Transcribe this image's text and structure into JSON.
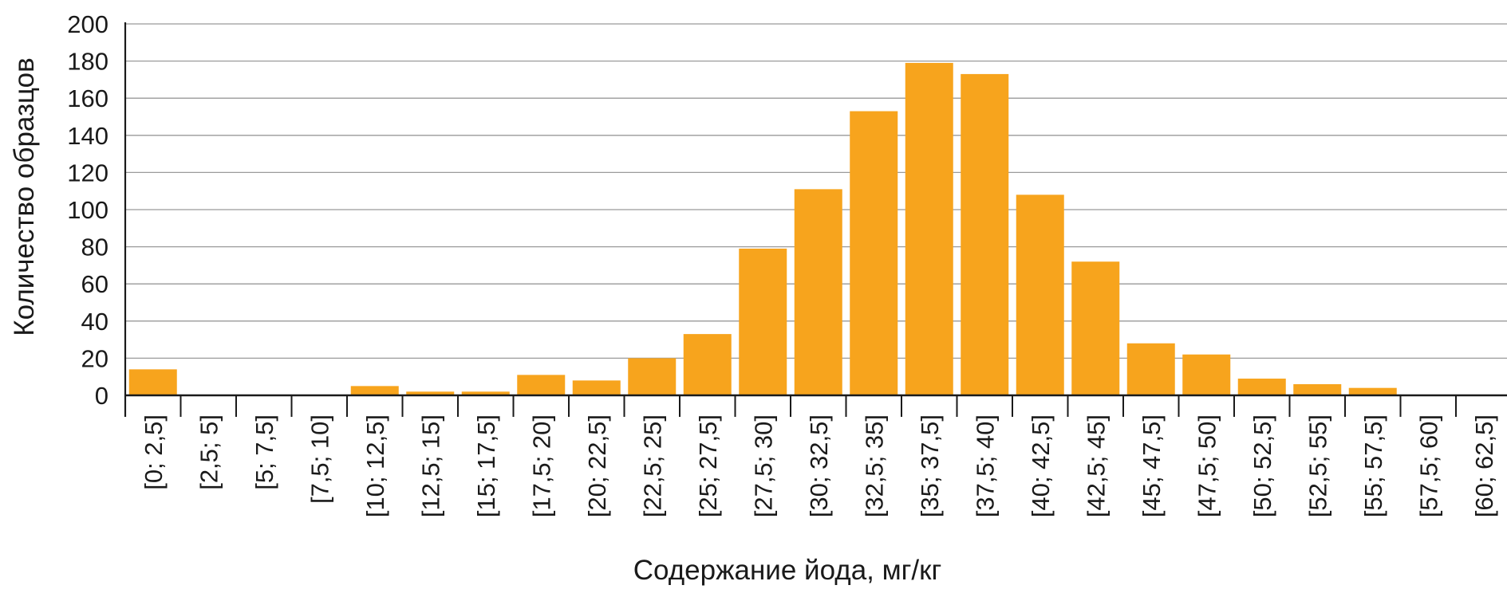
{
  "chart_data": {
    "type": "bar",
    "title": "",
    "xlabel": "Содержание йода, мг/кг",
    "ylabel": "Количество образцов",
    "ylim": [
      0,
      200
    ],
    "yticks": [
      "0",
      "20",
      "40",
      "60",
      "80",
      "100",
      "120",
      "140",
      "160",
      "180",
      "200"
    ],
    "grid": "horizontal",
    "bar_color": "#F7A41D",
    "categories": [
      "[0; 2,5]",
      "[2,5; 5]",
      "[5; 7,5]",
      "[7,5; 10]",
      "[10; 12,5]",
      "[12,5; 15]",
      "[15; 17,5]",
      "[17,5; 20]",
      "[20; 22,5]",
      "[22,5; 25]",
      "[25; 27,5]",
      "[27,5; 30]",
      "[30; 32,5]",
      "[32,5; 35]",
      "[35; 37,5]",
      "[37,5; 40]",
      "[40; 42,5]",
      "[42,5; 45]",
      "[45; 47,5]",
      "[47,5; 50]",
      "[50; 52,5]",
      "[52,5; 55]",
      "[55; 57,5]",
      "[57,5; 60]",
      "[60; 62,5]"
    ],
    "values": [
      14,
      0,
      0,
      0,
      5,
      2,
      2,
      11,
      8,
      20,
      33,
      79,
      111,
      153,
      179,
      173,
      108,
      72,
      28,
      22,
      9,
      6,
      4,
      0,
      0
    ]
  }
}
